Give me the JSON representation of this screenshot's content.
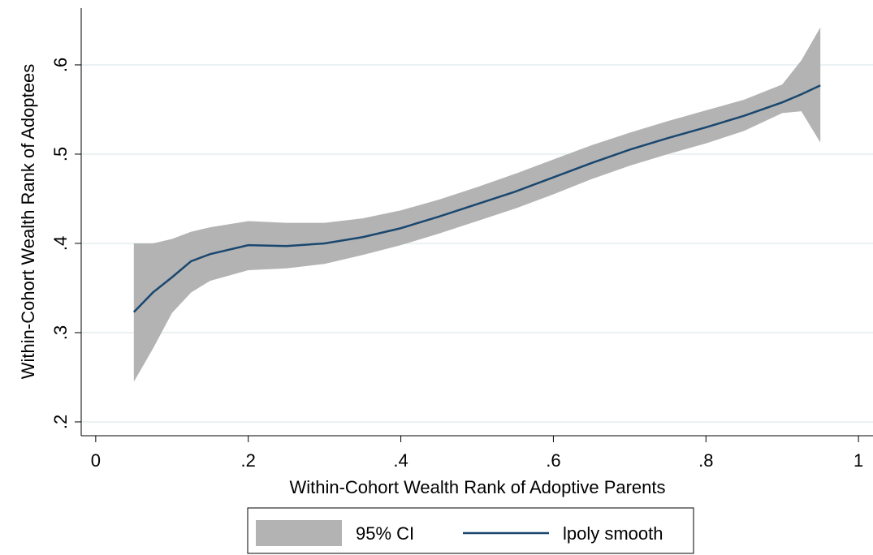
{
  "chart_data": {
    "type": "band-line",
    "x_label": "Within-Cohort Wealth Rank of Adoptive Parents",
    "y_label": "Within-Cohort Wealth Rank of Adoptees",
    "x": [
      0.05,
      0.075,
      0.1,
      0.125,
      0.15,
      0.2,
      0.25,
      0.3,
      0.35,
      0.4,
      0.45,
      0.5,
      0.55,
      0.6,
      0.65,
      0.7,
      0.75,
      0.8,
      0.85,
      0.9,
      0.925,
      0.95
    ],
    "series": [
      {
        "name": "95% CI",
        "color": "#b3b3b3",
        "lower": [
          0.245,
          0.282,
          0.322,
          0.345,
          0.358,
          0.37,
          0.372,
          0.377,
          0.387,
          0.398,
          0.411,
          0.425,
          0.439,
          0.455,
          0.472,
          0.487,
          0.5,
          0.512,
          0.526,
          0.546,
          0.548,
          0.513
        ],
        "upper": [
          0.4,
          0.4,
          0.405,
          0.413,
          0.418,
          0.425,
          0.423,
          0.423,
          0.428,
          0.437,
          0.449,
          0.463,
          0.478,
          0.494,
          0.51,
          0.524,
          0.537,
          0.549,
          0.561,
          0.578,
          0.605,
          0.642
        ]
      },
      {
        "name": "lpoly smooth",
        "color": "#1a476f",
        "values": [
          0.323,
          0.345,
          0.362,
          0.38,
          0.388,
          0.398,
          0.397,
          0.4,
          0.407,
          0.417,
          0.43,
          0.444,
          0.458,
          0.474,
          0.49,
          0.505,
          0.518,
          0.53,
          0.543,
          0.558,
          0.567,
          0.577
        ]
      }
    ],
    "xlim": [
      -0.019,
      1.019
    ],
    "ylim": [
      0.1845,
      0.6636
    ],
    "xticks": [
      0,
      {
        "value": 0.2,
        "label": ".2"
      },
      {
        "value": 0.4,
        "label": ".4"
      },
      {
        "value": 0.6,
        "label": ".6"
      },
      {
        "value": 0.8,
        "label": ".8"
      },
      1
    ],
    "yticks": [
      {
        "value": 0.2,
        "label": ".2"
      },
      {
        "value": 0.3,
        "label": ".3"
      },
      {
        "value": 0.4,
        "label": ".4"
      },
      {
        "value": 0.5,
        "label": ".5"
      },
      {
        "value": 0.6,
        "label": ".6"
      }
    ],
    "grid": true
  }
}
